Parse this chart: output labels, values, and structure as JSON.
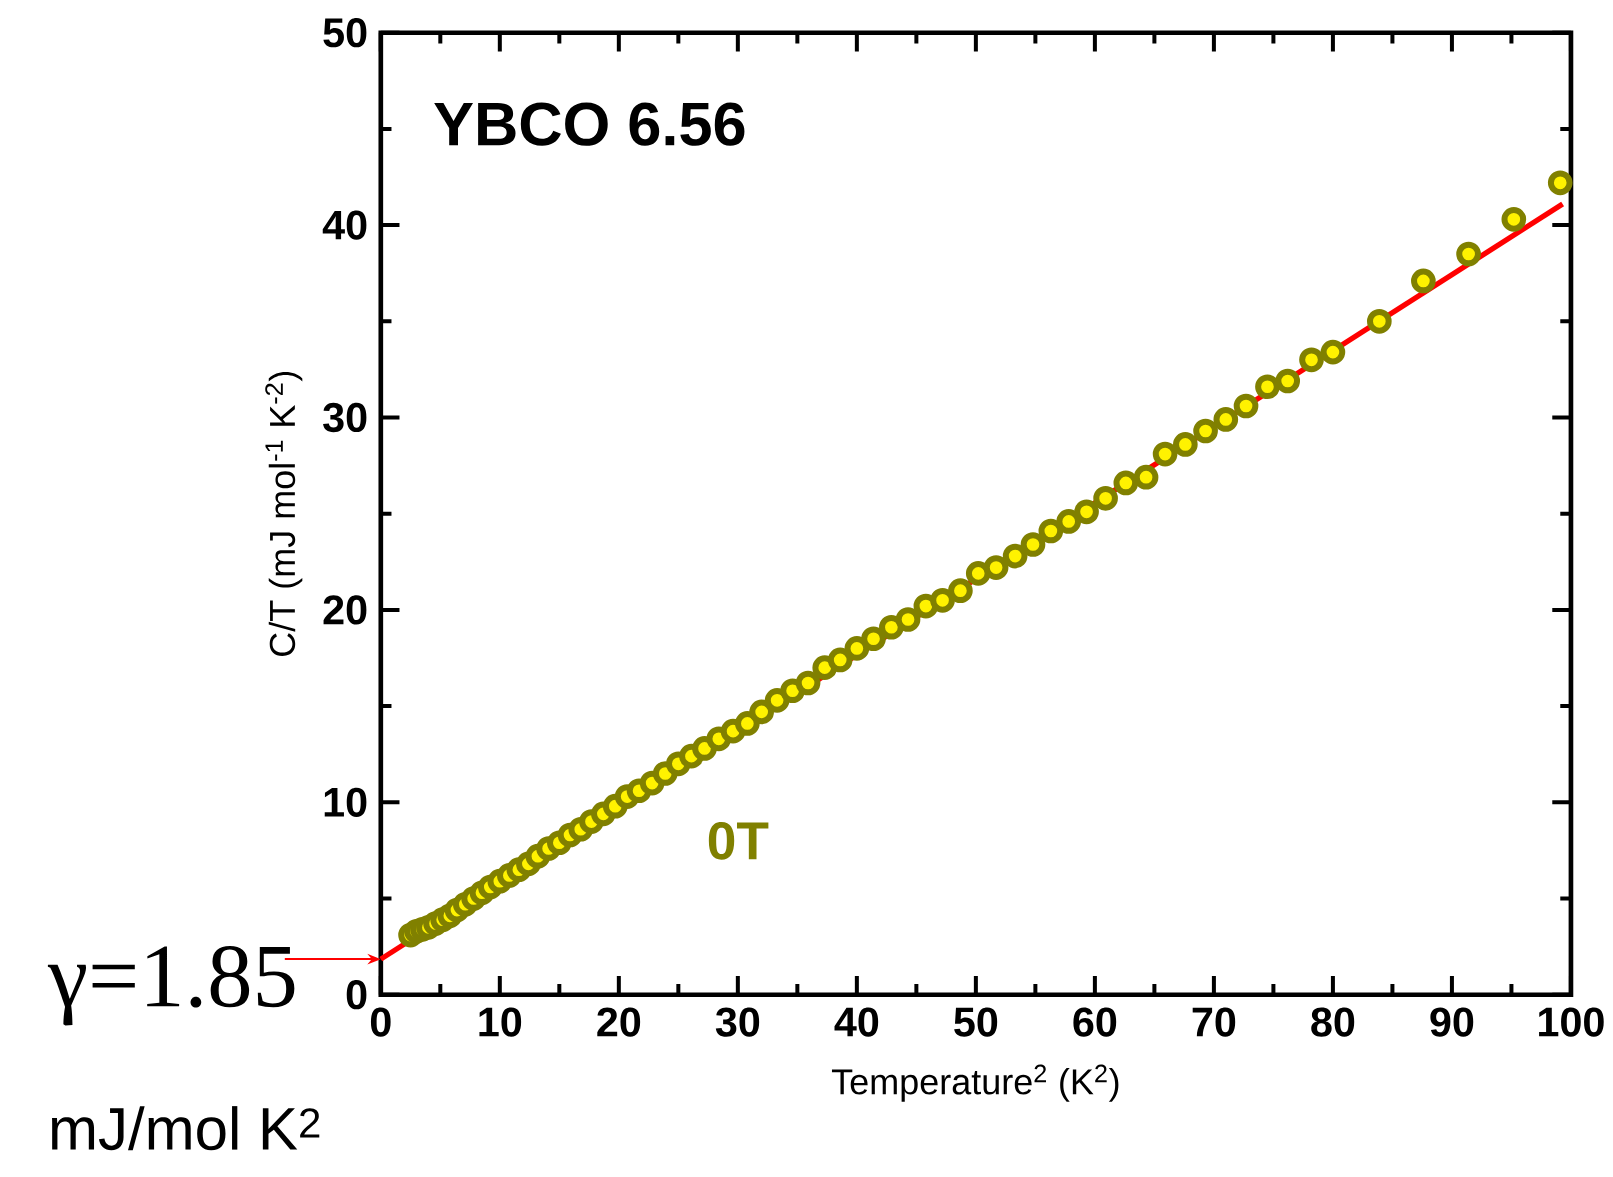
{
  "chart_data": {
    "type": "scatter",
    "title": "YBCO 6.56",
    "xlabel": "Temperature$^{2}$ (K$^{2}$)",
    "ylabel": "C/T (mJ mol$^{-1}$ K$^{-2}$)",
    "xlim": [
      0,
      100
    ],
    "ylim": [
      0,
      50
    ],
    "xticks": [
      0,
      10,
      20,
      30,
      40,
      50,
      60,
      70,
      80,
      90,
      100
    ],
    "yticks": [
      0,
      10,
      20,
      30,
      40,
      50
    ],
    "grid": false,
    "legend": false,
    "series": [
      {
        "name": "0T",
        "marker": "circle",
        "color": "#808000",
        "x": [
          2.5,
          3.0,
          3.5,
          4.0,
          4.6,
          5.2,
          5.8,
          6.4,
          7.1,
          7.8,
          8.5,
          9.2,
          10.0,
          10.8,
          11.6,
          12.4,
          13.2,
          14.1,
          15.0,
          15.9,
          16.8,
          17.7,
          18.7,
          19.7,
          20.7,
          21.7,
          22.8,
          23.9,
          25.0,
          26.1,
          27.2,
          28.4,
          29.6,
          30.8,
          32.0,
          33.3,
          34.6,
          35.9,
          37.3,
          38.6,
          40.0,
          41.4,
          42.9,
          44.3,
          45.8,
          47.2,
          48.7,
          50.2,
          51.7,
          53.3,
          54.8,
          56.3,
          57.8,
          59.3,
          60.9,
          62.6,
          64.3,
          65.9,
          67.6,
          69.3,
          71.0,
          72.7,
          74.5,
          76.2,
          78.2,
          80.0,
          83.9,
          87.6,
          91.4,
          95.2,
          99.1
        ],
        "values": [
          3.1,
          3.3,
          3.4,
          3.5,
          3.7,
          3.9,
          4.1,
          4.4,
          4.7,
          5.0,
          5.3,
          5.6,
          5.9,
          6.2,
          6.5,
          6.8,
          7.2,
          7.6,
          7.9,
          8.3,
          8.6,
          9.0,
          9.4,
          9.8,
          10.3,
          10.6,
          11.0,
          11.5,
          12.0,
          12.4,
          12.8,
          13.3,
          13.7,
          14.1,
          14.7,
          15.3,
          15.8,
          16.2,
          17.0,
          17.4,
          18.0,
          18.5,
          19.1,
          19.5,
          20.2,
          20.5,
          21.0,
          21.9,
          22.2,
          22.8,
          23.4,
          24.1,
          24.6,
          25.1,
          25.8,
          26.6,
          26.9,
          28.1,
          28.6,
          29.3,
          29.9,
          30.6,
          31.6,
          31.9,
          33.0,
          33.4,
          35.0,
          37.1,
          38.5,
          40.3,
          42.2
        ]
      },
      {
        "type": "line",
        "marker": "none",
        "line_style": "solid",
        "color": "#ff0000",
        "x": [
          0,
          99.3
        ],
        "values": [
          1.85,
          41.1
        ]
      }
    ],
    "annotations": [
      {
        "text": "γ=1.85",
        "x": 0,
        "y": 1.85
      },
      "mJ/mol K$^{2}$"
    ]
  }
}
